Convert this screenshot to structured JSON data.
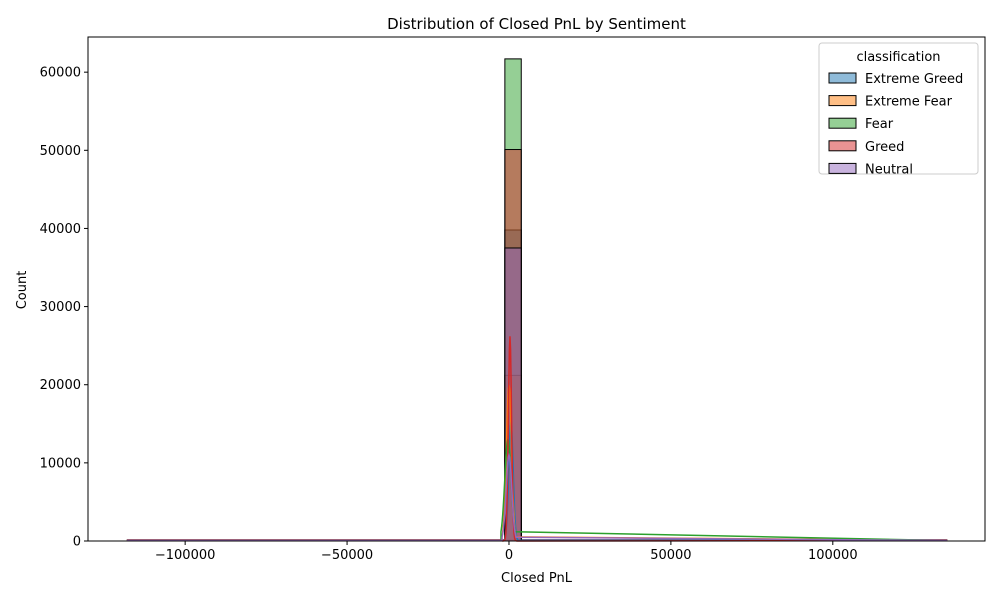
{
  "chart_data": {
    "type": "histogram",
    "title": "Distribution of Closed PnL by Sentiment",
    "xlabel": "Closed PnL",
    "ylabel": "Count",
    "xlim": [
      -130000,
      147000
    ],
    "ylim": [
      0,
      64500
    ],
    "x_ticks": [
      {
        "value": -100000,
        "label": "−100000"
      },
      {
        "value": -50000,
        "label": "−50000"
      },
      {
        "value": 0,
        "label": "0"
      },
      {
        "value": 50000,
        "label": "50000"
      },
      {
        "value": 100000,
        "label": "100000"
      }
    ],
    "y_ticks": [
      {
        "value": 0,
        "label": "0"
      },
      {
        "value": 10000,
        "label": "10000"
      },
      {
        "value": 20000,
        "label": "20000"
      },
      {
        "value": 30000,
        "label": "30000"
      },
      {
        "value": 40000,
        "label": "40000"
      },
      {
        "value": 50000,
        "label": "50000"
      },
      {
        "value": 60000,
        "label": "60000"
      }
    ],
    "bin_range": [
      -117990,
      135330
    ],
    "bin_width": 5066,
    "grid": false,
    "legend": {
      "title": "classification",
      "placement": "top-right"
    },
    "series": [
      {
        "name": "Extreme Greed",
        "color": "#1f77b4",
        "central_bin": [
          -1270,
          3796
        ],
        "central_count": 39800,
        "kde_peak": 15200
      },
      {
        "name": "Extreme Fear",
        "color": "#ff7f0e",
        "central_bin": [
          -1270,
          3796
        ],
        "central_count": 21200,
        "kde_peak": 20000
      },
      {
        "name": "Fear",
        "color": "#2ca02c",
        "central_bin": [
          -1270,
          3796
        ],
        "central_count": 61700,
        "kde_peak": 13000
      },
      {
        "name": "Greed",
        "color": "#d62728",
        "central_bin": [
          -1270,
          3796
        ],
        "central_count": 50100,
        "kde_peak": 26200
      },
      {
        "name": "Neutral",
        "color": "#9467bd",
        "central_bin": [
          -1270,
          3796
        ],
        "central_count": 37500,
        "kde_peak": 11000
      }
    ]
  }
}
